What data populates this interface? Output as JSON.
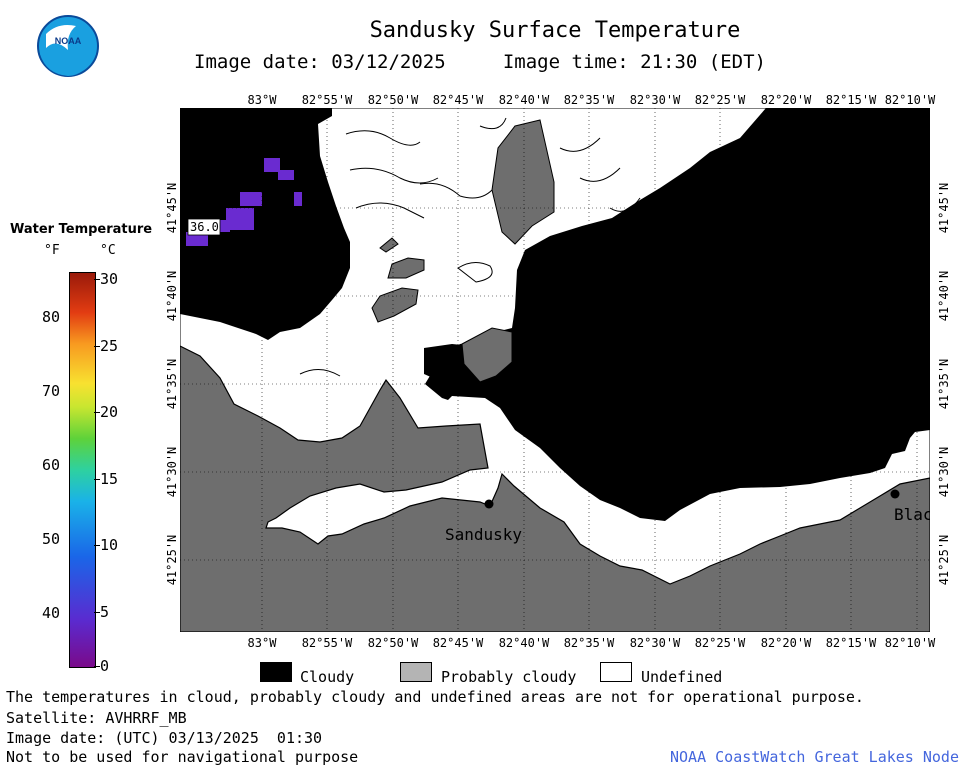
{
  "title": "Sandusky Surface Temperature",
  "subtitle": "Image date: 03/12/2025     Image time: 21:30 (EDT)",
  "colors": {
    "cloudy": "#000000",
    "probably_cloudy": "#6e6e6e",
    "probably_cloudy_key": "#b4b4b4",
    "undefined": "#ffffff",
    "land": "#6e6e6e",
    "water_temp_purple": "#6a2bd0",
    "credit_blue": "#4466dd"
  },
  "map": {
    "longitudes": [
      "83°W",
      "82°55'W",
      "82°50'W",
      "82°45'W",
      "82°40'W",
      "82°35'W",
      "82°30'W",
      "82°25'W",
      "82°20'W",
      "82°15'W",
      "82°10'W"
    ],
    "latitudes": [
      "41°45'N",
      "41°40'N",
      "41°35'N",
      "41°30'N",
      "41°25'N"
    ],
    "places": [
      {
        "name": "Sandusky",
        "marker": "dot"
      },
      {
        "name": "Blac",
        "marker": "dot"
      }
    ],
    "temperature_label": "36.0"
  },
  "legend": {
    "title": "Water Temperature",
    "unit_f": "°F",
    "unit_c": "°C",
    "f_ticks": [
      "80",
      "70",
      "60",
      "50",
      "40"
    ],
    "c_ticks": [
      "30",
      "25",
      "20",
      "15",
      "10",
      "5",
      "0"
    ]
  },
  "key": {
    "cloudy": "Cloudy",
    "probably_cloudy": "Probably cloudy",
    "undefined": "Undefined"
  },
  "footer": {
    "disclaimer": "The temperatures in cloud, probably cloudy and undefined areas are not for operational purpose.",
    "satellite": "Satellite: AVHRRF_MB",
    "utc_date": "Image date: (UTC) 03/13/2025  01:30",
    "nav_warning": "Not to be used for navigational purpose",
    "credit": "NOAA CoastWatch Great Lakes Node"
  },
  "logo": {
    "text": "NOAA"
  }
}
